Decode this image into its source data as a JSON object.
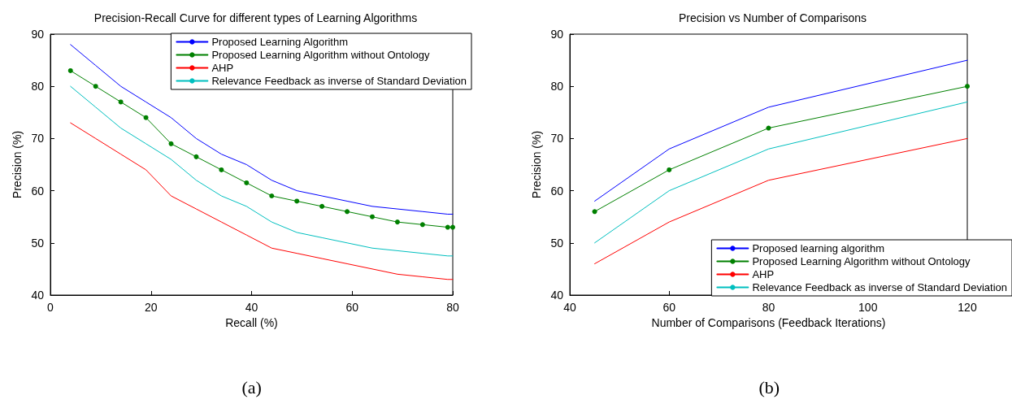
{
  "chart_data": [
    {
      "type": "line",
      "title": "Precision-Recall Curve for different types of Learning Algorithms",
      "xlabel": "Recall (%)",
      "ylabel": "Precision (%)",
      "annotations": [
        "(a)"
      ],
      "x": [
        4,
        9,
        14,
        19,
        24,
        29,
        34,
        39,
        44,
        49,
        54,
        59,
        64,
        69,
        74,
        79,
        80
      ],
      "series": [
        {
          "name": "Proposed Learning Algorithm",
          "color": "#0000ff",
          "values": [
            88,
            84,
            80,
            77,
            74,
            70,
            67,
            65,
            62,
            60,
            59,
            58,
            57,
            56.5,
            56,
            55.5,
            55.5
          ]
        },
        {
          "name": "Proposed Learning Algorithm without Ontology",
          "color": "#008000",
          "marker": "circle",
          "values": [
            83,
            80,
            77,
            74,
            69,
            66.5,
            64,
            61.5,
            59,
            58,
            57,
            56,
            55,
            54,
            53.5,
            53,
            53
          ]
        },
        {
          "name": "AHP",
          "color": "#ff0000",
          "values": [
            73,
            70,
            67,
            64,
            59,
            56.5,
            54,
            51.5,
            49,
            48,
            47,
            46,
            45,
            44,
            43.5,
            43,
            43
          ]
        },
        {
          "name": "Relevance Feedback as inverse of Standard Deviation",
          "color": "#00bfbf",
          "values": [
            80,
            76,
            72,
            69,
            66,
            62,
            59,
            57,
            54,
            52,
            51,
            50,
            49,
            48.5,
            48,
            47.5,
            47.5
          ]
        }
      ],
      "xlim": [
        0,
        80
      ],
      "xticks": [
        0,
        20,
        40,
        60,
        80
      ],
      "ylim": [
        40,
        90
      ],
      "yticks": [
        40,
        50,
        60,
        70,
        80,
        90
      ],
      "grid": false,
      "legend": "top right",
      "line_style": "solid"
    },
    {
      "type": "line",
      "title": "Precision vs Number of Comparisons",
      "xlabel": "Number of Comparisons (Feedback Iterations)",
      "ylabel": "Precision (%)",
      "annotations": [
        "(b)"
      ],
      "x": [
        45,
        60,
        80,
        120
      ],
      "series": [
        {
          "name": "Proposed learning algorithm",
          "color": "#0000ff",
          "values": [
            58,
            68,
            76,
            85
          ]
        },
        {
          "name": "Proposed Learning Algorithm without Ontology",
          "color": "#008000",
          "marker": "circle",
          "values": [
            56,
            64,
            72,
            80
          ]
        },
        {
          "name": "AHP",
          "color": "#ff0000",
          "values": [
            46,
            54,
            62,
            70
          ]
        },
        {
          "name": "Relevance Feedback as inverse of Standard Deviation",
          "color": "#00bfbf",
          "values": [
            50,
            60,
            68,
            77
          ]
        }
      ],
      "xlim": [
        40,
        120
      ],
      "xticks": [
        40,
        60,
        80,
        100,
        120
      ],
      "ylim": [
        40,
        90
      ],
      "yticks": [
        40,
        50,
        60,
        70,
        80,
        90
      ],
      "grid": false,
      "legend": "bottom right",
      "line_style": "solid"
    }
  ]
}
